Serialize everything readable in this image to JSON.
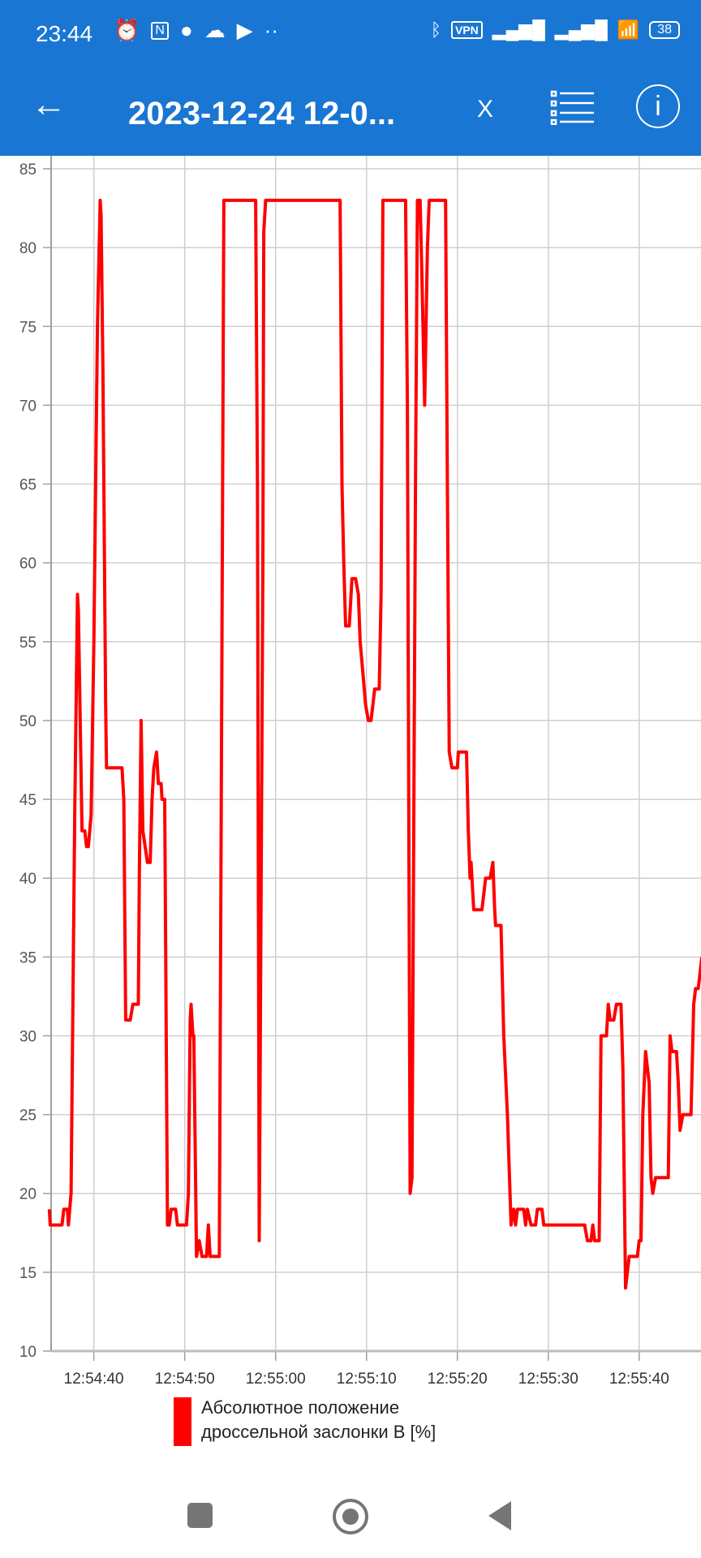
{
  "status_bar": {
    "time": "23:44",
    "vpn": "VPN",
    "battery": "38"
  },
  "toolbar": {
    "title": "2023-12-24 12-0...",
    "x_label": "X",
    "icons": [
      "back-arrow-icon",
      "list-icon",
      "info-icon"
    ]
  },
  "chart_data": {
    "type": "line",
    "title": "",
    "xlabel": "",
    "ylabel": "",
    "ylim": [
      10,
      85
    ],
    "xlim": [
      "12:54:35.3",
      "12:55:46.8"
    ],
    "yticks": [
      "10",
      "15",
      "20",
      "25",
      "30",
      "35",
      "40",
      "45",
      "50",
      "55",
      "60",
      "65",
      "70",
      "75",
      "80",
      "85"
    ],
    "xticks": [
      "12:54:40",
      "12:54:50",
      "12:55:00",
      "12:55:10",
      "12:55:20",
      "12:55:30",
      "12:55:40"
    ],
    "grid": true,
    "legend_position": "bottom",
    "series": [
      {
        "name": "Абсолютное положение дроссельной заслонки В [%]",
        "color": "#ff0000",
        "points": [
          [
            "12:54:35.1",
            19
          ],
          [
            "12:54:35.2",
            18
          ],
          [
            "12:54:36.5",
            18
          ],
          [
            "12:54:36.7",
            19
          ],
          [
            "12:54:37.1",
            19
          ],
          [
            "12:54:37.2",
            18
          ],
          [
            "12:54:37.5",
            20
          ],
          [
            "12:54:37.9",
            44
          ],
          [
            "12:54:38.2",
            58
          ],
          [
            "12:54:38.3",
            57
          ],
          [
            "12:54:38.7",
            43
          ],
          [
            "12:54:39.0",
            43
          ],
          [
            "12:54:39.2",
            42
          ],
          [
            "12:54:39.4",
            42
          ],
          [
            "12:54:39.7",
            44
          ],
          [
            "12:54:40.0",
            55
          ],
          [
            "12:54:40.4",
            75
          ],
          [
            "12:54:40.7",
            83
          ],
          [
            "12:54:40.8",
            82
          ],
          [
            "12:54:41.0",
            72
          ],
          [
            "12:54:41.3",
            51
          ],
          [
            "12:54:41.4",
            47
          ],
          [
            "12:54:43.1",
            47
          ],
          [
            "12:54:43.3",
            45
          ],
          [
            "12:54:43.5",
            31
          ],
          [
            "12:54:44.0",
            31
          ],
          [
            "12:54:44.3",
            32
          ],
          [
            "12:54:44.9",
            32
          ],
          [
            "12:54:45.0",
            40
          ],
          [
            "12:54:45.2",
            50
          ],
          [
            "12:54:45.4",
            43
          ],
          [
            "12:54:45.9",
            41
          ],
          [
            "12:54:46.2",
            41
          ],
          [
            "12:54:46.4",
            45
          ],
          [
            "12:54:46.6",
            47
          ],
          [
            "12:54:46.9",
            48
          ],
          [
            "12:54:47.1",
            46
          ],
          [
            "12:54:47.4",
            46
          ],
          [
            "12:54:47.5",
            45
          ],
          [
            "12:54:47.8",
            45
          ],
          [
            "12:54:48.1",
            18
          ],
          [
            "12:54:48.3",
            18
          ],
          [
            "12:54:48.5",
            19
          ],
          [
            "12:54:49.0",
            19
          ],
          [
            "12:54:49.2",
            18
          ],
          [
            "12:54:50.2",
            18
          ],
          [
            "12:54:50.4",
            20
          ],
          [
            "12:54:50.6",
            31
          ],
          [
            "12:54:50.7",
            32
          ],
          [
            "12:54:50.9",
            30
          ],
          [
            "12:54:51.0",
            30
          ],
          [
            "12:54:51.3",
            16
          ],
          [
            "12:54:51.6",
            17
          ],
          [
            "12:54:51.9",
            16
          ],
          [
            "12:54:52.4",
            16
          ],
          [
            "12:54:52.6",
            18
          ],
          [
            "12:54:52.8",
            16
          ],
          [
            "12:54:53.8",
            16
          ],
          [
            "12:54:54.3",
            83
          ],
          [
            "12:54:57.8",
            83
          ],
          [
            "12:54:58.0",
            65
          ],
          [
            "12:54:58.2",
            17
          ],
          [
            "12:54:58.6",
            60
          ],
          [
            "12:54:58.7",
            81
          ],
          [
            "12:54:58.9",
            83
          ],
          [
            "12:55:07.1",
            83
          ],
          [
            "12:55:07.3",
            65
          ],
          [
            "12:55:07.5",
            60
          ],
          [
            "12:55:07.7",
            56
          ],
          [
            "12:55:08.1",
            56
          ],
          [
            "12:55:08.4",
            59
          ],
          [
            "12:55:08.8",
            59
          ],
          [
            "12:55:09.1",
            58
          ],
          [
            "12:55:09.3",
            55
          ],
          [
            "12:55:09.6",
            53
          ],
          [
            "12:55:09.9",
            51
          ],
          [
            "12:55:10.2",
            50
          ],
          [
            "12:55:10.5",
            50
          ],
          [
            "12:55:10.7",
            51
          ],
          [
            "12:55:10.9",
            52
          ],
          [
            "12:55:11.4",
            52
          ],
          [
            "12:55:11.6",
            58
          ],
          [
            "12:55:11.8",
            83
          ],
          [
            "12:55:14.3",
            83
          ],
          [
            "12:55:14.5",
            70
          ],
          [
            "12:55:14.8",
            20
          ],
          [
            "12:55:15.0",
            21
          ],
          [
            "12:55:15.4",
            66
          ],
          [
            "12:55:15.6",
            83
          ],
          [
            "12:55:15.9",
            83
          ],
          [
            "12:55:16.1",
            78
          ],
          [
            "12:55:16.4",
            70
          ],
          [
            "12:55:16.7",
            80
          ],
          [
            "12:55:16.9",
            83
          ],
          [
            "12:55:18.7",
            83
          ],
          [
            "12:55:18.9",
            65
          ],
          [
            "12:55:19.1",
            48
          ],
          [
            "12:55:19.4",
            47
          ],
          [
            "12:55:20.0",
            47
          ],
          [
            "12:55:20.1",
            48
          ],
          [
            "12:55:21.0",
            48
          ],
          [
            "12:55:21.2",
            43
          ],
          [
            "12:55:21.4",
            40
          ],
          [
            "12:55:21.5",
            41
          ],
          [
            "12:55:21.8",
            38
          ],
          [
            "12:55:22.7",
            38
          ],
          [
            "12:55:22.9",
            39
          ],
          [
            "12:55:23.1",
            40
          ],
          [
            "12:55:23.6",
            40
          ],
          [
            "12:55:23.9",
            41
          ],
          [
            "12:55:24.1",
            38
          ],
          [
            "12:55:24.2",
            37
          ],
          [
            "12:55:24.8",
            37
          ],
          [
            "12:55:25.1",
            30
          ],
          [
            "12:55:25.5",
            25
          ],
          [
            "12:55:25.9",
            18
          ],
          [
            "12:55:26.2",
            19
          ],
          [
            "12:55:26.4",
            18
          ],
          [
            "12:55:26.6",
            19
          ],
          [
            "12:55:27.3",
            19
          ],
          [
            "12:55:27.5",
            18
          ],
          [
            "12:55:27.7",
            19
          ],
          [
            "12:55:28.1",
            18
          ],
          [
            "12:55:28.6",
            18
          ],
          [
            "12:55:28.8",
            19
          ],
          [
            "12:55:29.3",
            19
          ],
          [
            "12:55:29.5",
            18
          ],
          [
            "12:55:34.0",
            18
          ],
          [
            "12:55:34.3",
            17
          ],
          [
            "12:55:34.7",
            17
          ],
          [
            "12:55:34.9",
            18
          ],
          [
            "12:55:35.1",
            17
          ],
          [
            "12:55:35.6",
            17
          ],
          [
            "12:55:35.8",
            30
          ],
          [
            "12:55:36.4",
            30
          ],
          [
            "12:55:36.6",
            32
          ],
          [
            "12:55:36.8",
            31
          ],
          [
            "12:55:37.2",
            31
          ],
          [
            "12:55:37.5",
            32
          ],
          [
            "12:55:38.0",
            32
          ],
          [
            "12:55:38.2",
            28
          ],
          [
            "12:55:38.5",
            14
          ],
          [
            "12:55:38.9",
            16
          ],
          [
            "12:55:39.8",
            16
          ],
          [
            "12:55:40.0",
            17
          ],
          [
            "12:55:40.2",
            17
          ],
          [
            "12:55:40.4",
            25
          ],
          [
            "12:55:40.7",
            29
          ],
          [
            "12:55:40.9",
            28
          ],
          [
            "12:55:41.1",
            27
          ],
          [
            "12:55:41.3",
            21
          ],
          [
            "12:55:41.5",
            20
          ],
          [
            "12:55:41.8",
            21
          ],
          [
            "12:55:43.2",
            21
          ],
          [
            "12:55:43.4",
            30
          ],
          [
            "12:55:43.6",
            29
          ],
          [
            "12:55:44.1",
            29
          ],
          [
            "12:55:44.3",
            27
          ],
          [
            "12:55:44.5",
            24
          ],
          [
            "12:55:44.8",
            25
          ],
          [
            "12:55:45.7",
            25
          ],
          [
            "12:55:46.0",
            32
          ],
          [
            "12:55:46.2",
            33
          ],
          [
            "12:55:46.5",
            33
          ],
          [
            "12:55:46.9",
            35
          ]
        ]
      }
    ]
  },
  "legend": {
    "line1": "Абсолютное положение",
    "line2": "дроссельной заслонки В [%]"
  },
  "nav_bar": {
    "icons": [
      "recents-square-icon",
      "home-circle-icon",
      "back-triangle-icon"
    ]
  }
}
